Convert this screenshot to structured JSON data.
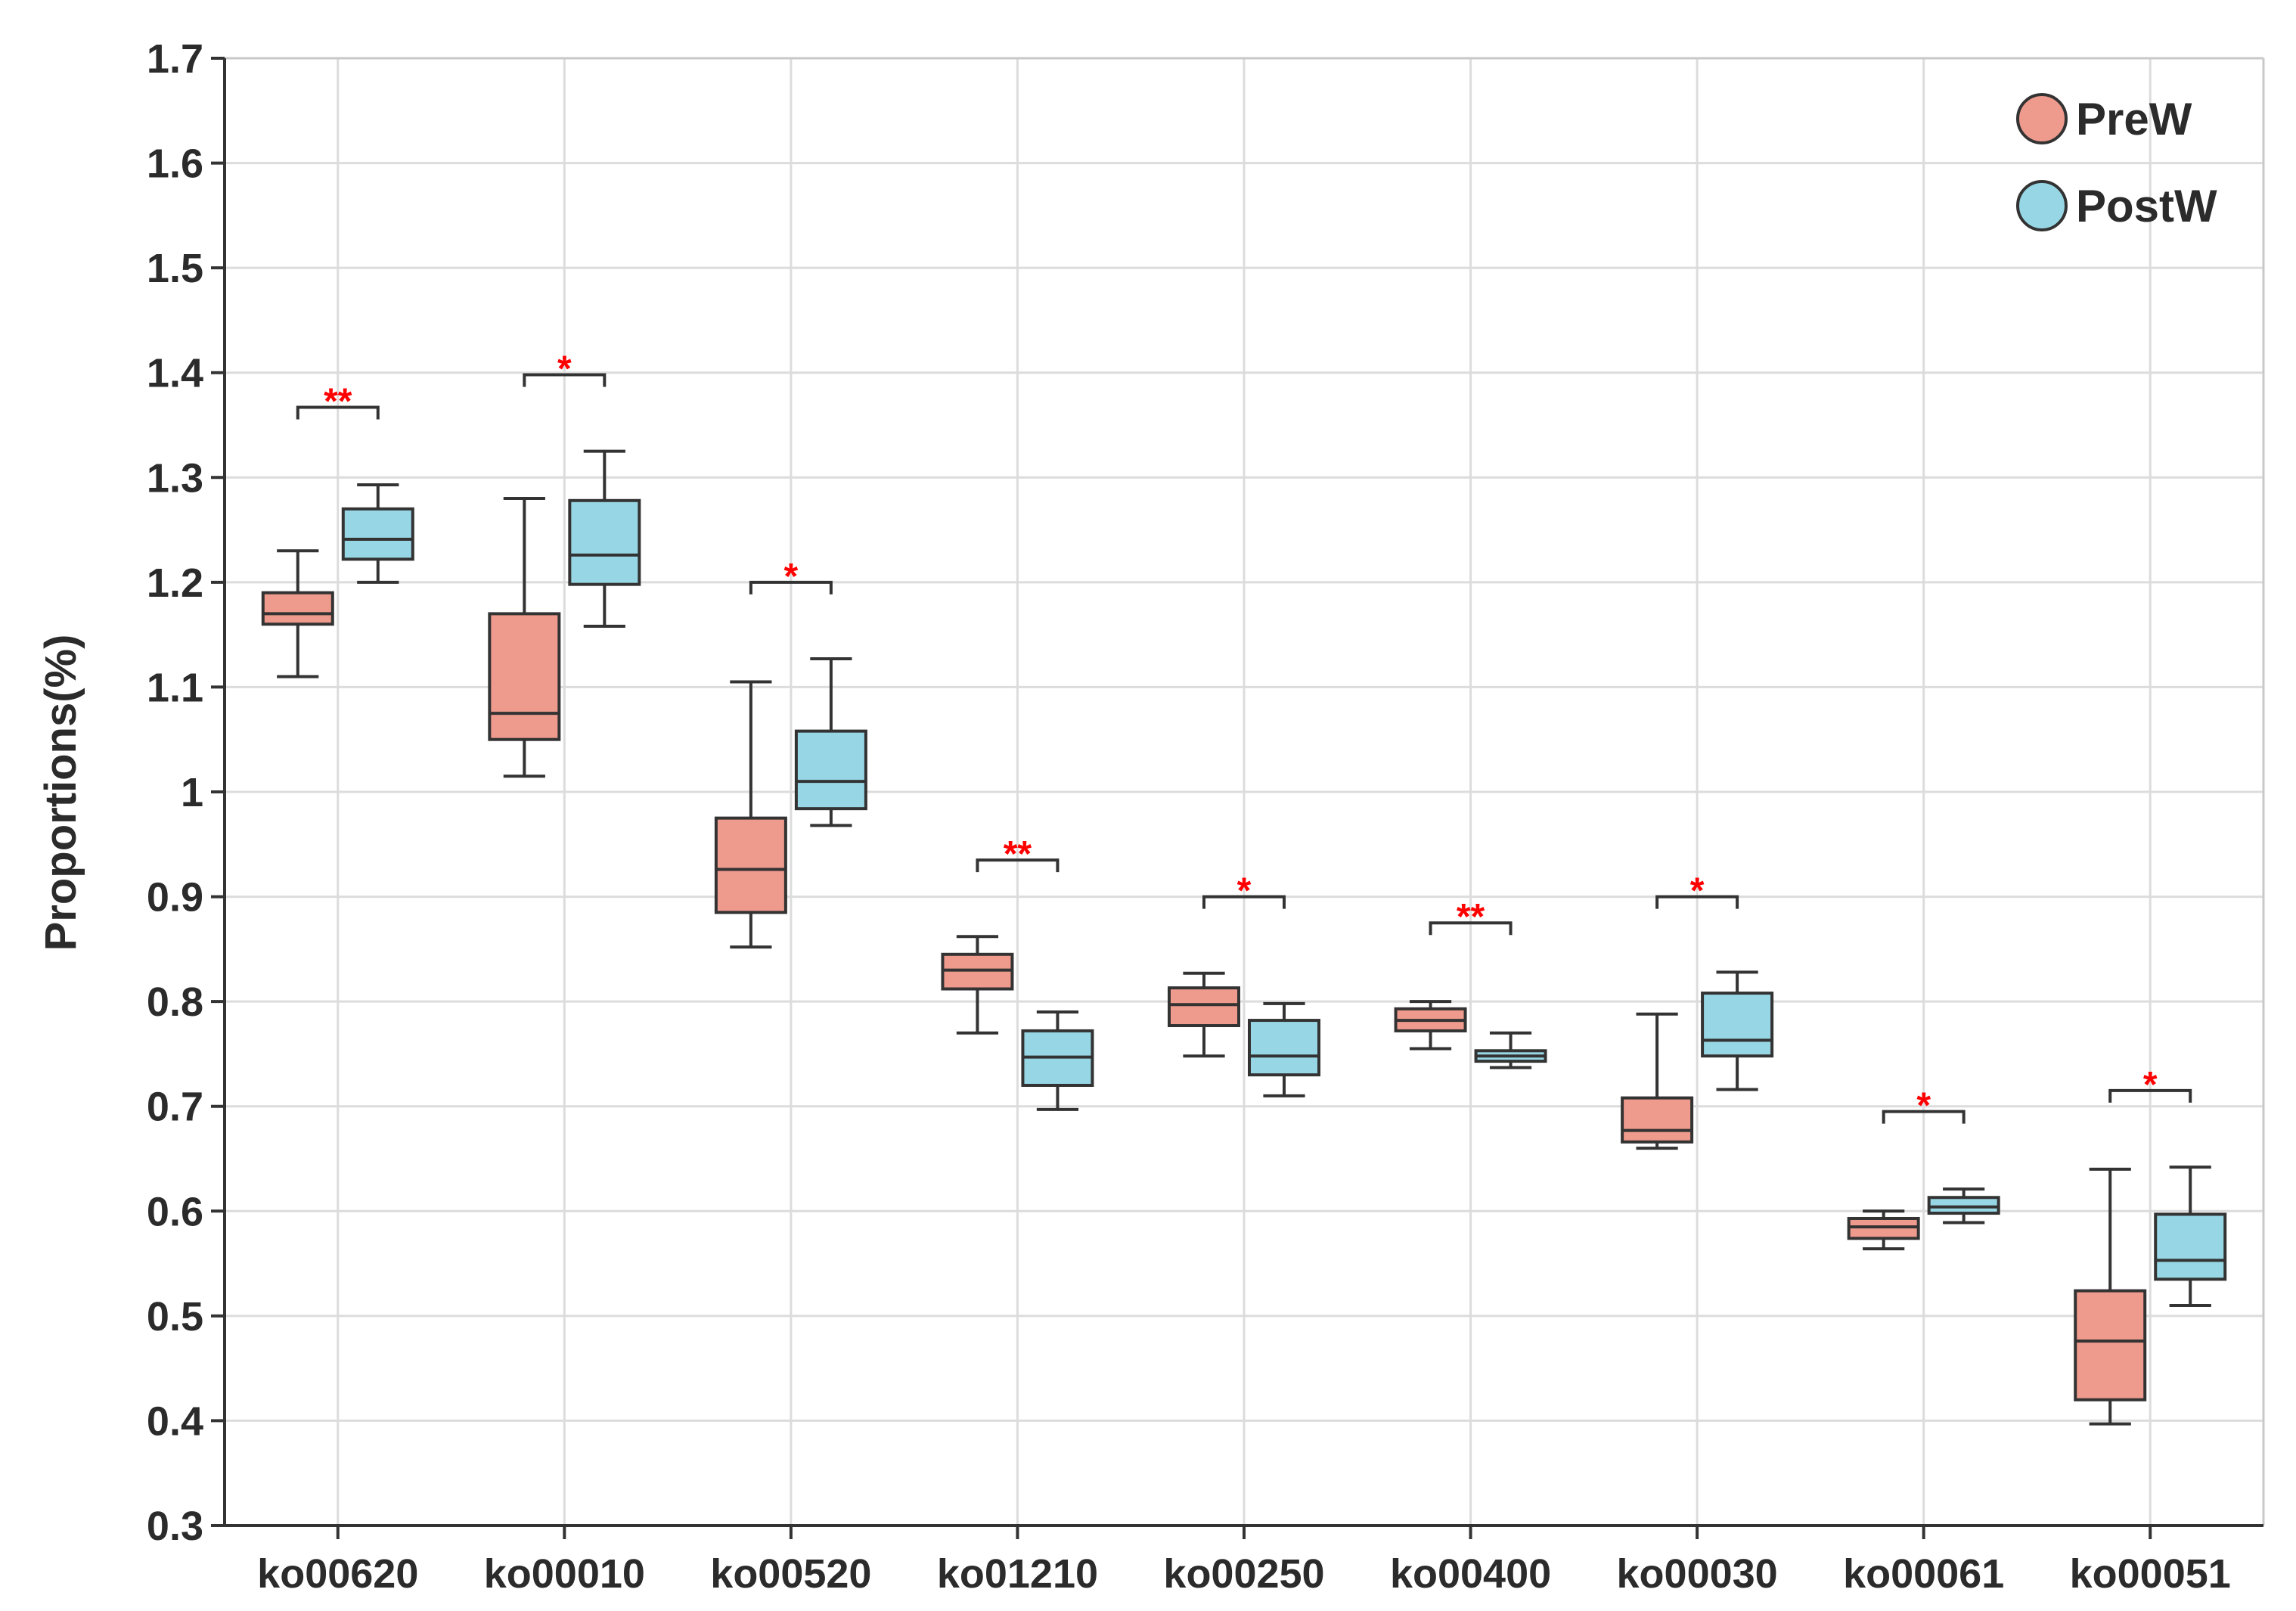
{
  "chart_data": {
    "type": "box",
    "title": "",
    "xlabel": "",
    "ylabel": "Proportions(%)",
    "ylim": [
      0.3,
      1.7
    ],
    "yticks": [
      "0.3",
      "0.4",
      "0.5",
      "0.6",
      "0.7",
      "0.8",
      "0.9",
      "1",
      "1.1",
      "1.2",
      "1.3",
      "1.4",
      "1.5",
      "1.6",
      "1.7"
    ],
    "grid": true,
    "legend_position": "top-right",
    "categories": [
      "ko00620",
      "ko00010",
      "ko00520",
      "ko01210",
      "ko00250",
      "ko00400",
      "ko00030",
      "ko00061",
      "ko00051"
    ],
    "series": [
      {
        "name": "PreW",
        "color": "#ee9a8d",
        "boxes": [
          {
            "min": 1.11,
            "q1": 1.16,
            "median": 1.17,
            "q3": 1.19,
            "max": 1.23
          },
          {
            "min": 1.015,
            "q1": 1.05,
            "median": 1.075,
            "q3": 1.17,
            "max": 1.28
          },
          {
            "min": 0.852,
            "q1": 0.885,
            "median": 0.926,
            "q3": 0.975,
            "max": 1.105
          },
          {
            "min": 0.77,
            "q1": 0.812,
            "median": 0.83,
            "q3": 0.845,
            "max": 0.862
          },
          {
            "min": 0.748,
            "q1": 0.777,
            "median": 0.797,
            "q3": 0.813,
            "max": 0.827
          },
          {
            "min": 0.755,
            "q1": 0.772,
            "median": 0.782,
            "q3": 0.793,
            "max": 0.8
          },
          {
            "min": 0.66,
            "q1": 0.666,
            "median": 0.677,
            "q3": 0.708,
            "max": 0.788
          },
          {
            "min": 0.564,
            "q1": 0.574,
            "median": 0.585,
            "q3": 0.593,
            "max": 0.6
          },
          {
            "min": 0.397,
            "q1": 0.42,
            "median": 0.476,
            "q3": 0.524,
            "max": 0.64
          }
        ]
      },
      {
        "name": "PostW",
        "color": "#97d7e5",
        "boxes": [
          {
            "min": 1.2,
            "q1": 1.222,
            "median": 1.241,
            "q3": 1.27,
            "max": 1.293
          },
          {
            "min": 1.158,
            "q1": 1.198,
            "median": 1.226,
            "q3": 1.278,
            "max": 1.325
          },
          {
            "min": 0.968,
            "q1": 0.984,
            "median": 1.01,
            "q3": 1.058,
            "max": 1.127
          },
          {
            "min": 0.697,
            "q1": 0.72,
            "median": 0.747,
            "q3": 0.772,
            "max": 0.79
          },
          {
            "min": 0.71,
            "q1": 0.73,
            "median": 0.748,
            "q3": 0.782,
            "max": 0.798
          },
          {
            "min": 0.737,
            "q1": 0.743,
            "median": 0.748,
            "q3": 0.753,
            "max": 0.77
          },
          {
            "min": 0.716,
            "q1": 0.748,
            "median": 0.763,
            "q3": 0.808,
            "max": 0.828
          },
          {
            "min": 0.589,
            "q1": 0.598,
            "median": 0.604,
            "q3": 0.613,
            "max": 0.621
          },
          {
            "min": 0.51,
            "q1": 0.535,
            "median": 0.553,
            "q3": 0.597,
            "max": 0.642
          }
        ]
      }
    ],
    "significance": [
      {
        "label": "**",
        "y": 1.367
      },
      {
        "label": "*",
        "y": 1.398
      },
      {
        "label": "*",
        "y": 1.2
      },
      {
        "label": "**",
        "y": 0.935
      },
      {
        "label": "*",
        "y": 0.9
      },
      {
        "label": "**",
        "y": 0.875
      },
      {
        "label": "*",
        "y": 0.9
      },
      {
        "label": "*",
        "y": 0.695
      },
      {
        "label": "*",
        "y": 0.715
      }
    ],
    "significance_color": "#ff0000"
  }
}
